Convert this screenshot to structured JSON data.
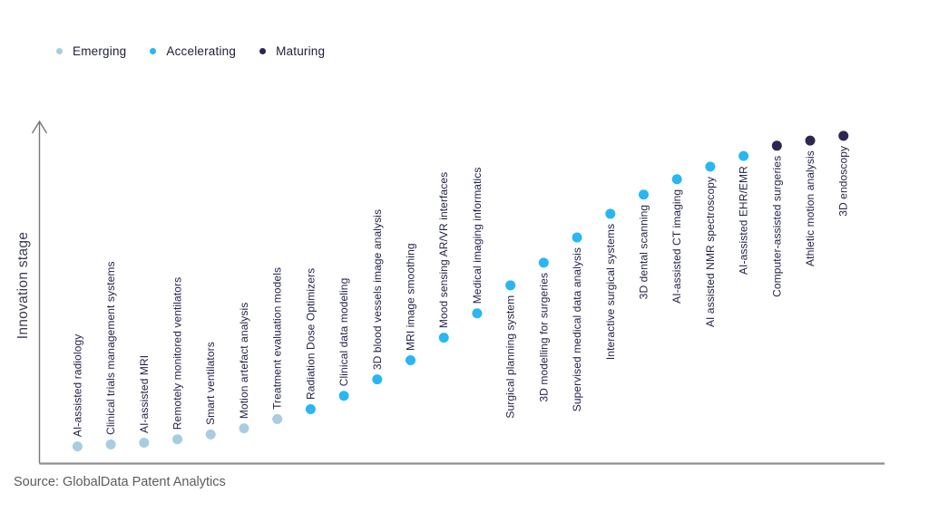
{
  "legend": {
    "items": [
      {
        "label": "Emerging",
        "color": "#a8cde2"
      },
      {
        "label": "Accelerating",
        "color": "#29b6f2"
      },
      {
        "label": "Maturing",
        "color": "#2e2651"
      }
    ]
  },
  "source": "Source: GlobalData Patent Analytics",
  "chart_data": {
    "type": "scatter",
    "title": "",
    "xlabel": "",
    "ylabel": "Innovation stage",
    "ylim": [
      0,
      100
    ],
    "grid": false,
    "axis_ticks_visible": false,
    "legend_position": "top-left",
    "stage_colors": {
      "Emerging": "#a8cde2",
      "Accelerating": "#29b6f2",
      "Maturing": "#2e2651"
    },
    "label_color": "#24244a",
    "axis_color": "#8f8f8f",
    "points": [
      {
        "label": "AI-assisted radiology",
        "stage": "Emerging",
        "value": 5.0
      },
      {
        "label": "Clinical trials management systems",
        "stage": "Emerging",
        "value": 5.6
      },
      {
        "label": "AI-assisted MRI",
        "stage": "Emerging",
        "value": 6.1
      },
      {
        "label": "Remotely monitored ventilators",
        "stage": "Emerging",
        "value": 7.1
      },
      {
        "label": "Smart ventilators",
        "stage": "Emerging",
        "value": 8.5
      },
      {
        "label": "Motion artefact analysis",
        "stage": "Emerging",
        "value": 10.3
      },
      {
        "label": "Treatment evaluation models",
        "stage": "Emerging",
        "value": 13.0
      },
      {
        "label": "Radiation Dose Optimizers",
        "stage": "Accelerating",
        "value": 15.9
      },
      {
        "label": "Clinical data modeling",
        "stage": "Accelerating",
        "value": 19.8
      },
      {
        "label": "3D blood vessels image analysis",
        "stage": "Accelerating",
        "value": 24.6
      },
      {
        "label": "MRI image smoothing",
        "stage": "Accelerating",
        "value": 30.2
      },
      {
        "label": "Mood sensing AR/VR interfaces",
        "stage": "Accelerating",
        "value": 36.8
      },
      {
        "label": "Medical imaging informatics",
        "stage": "Accelerating",
        "value": 43.9
      },
      {
        "label": "Surgical planning system",
        "stage": "Accelerating",
        "value": 52.1
      },
      {
        "label": "3D modelling for surgeries",
        "stage": "Accelerating",
        "value": 58.7
      },
      {
        "label": "Supervised medical data analysis",
        "stage": "Accelerating",
        "value": 66.1
      },
      {
        "label": "Interactive surgical systems",
        "stage": "Accelerating",
        "value": 73.0
      },
      {
        "label": "3D dental scanning",
        "stage": "Accelerating",
        "value": 78.6
      },
      {
        "label": "AI-assisted CT imaging",
        "stage": "Accelerating",
        "value": 83.1
      },
      {
        "label": "AI assisted NMR spectroscopy",
        "stage": "Accelerating",
        "value": 86.8
      },
      {
        "label": "AI-assisted EHR/EMR",
        "stage": "Accelerating",
        "value": 89.9
      },
      {
        "label": "Computer-assisted surgeries",
        "stage": "Maturing",
        "value": 92.9
      },
      {
        "label": "Athletic motion analysis",
        "stage": "Maturing",
        "value": 94.4
      },
      {
        "label": "3D endoscopy",
        "stage": "Maturing",
        "value": 95.8
      }
    ]
  }
}
